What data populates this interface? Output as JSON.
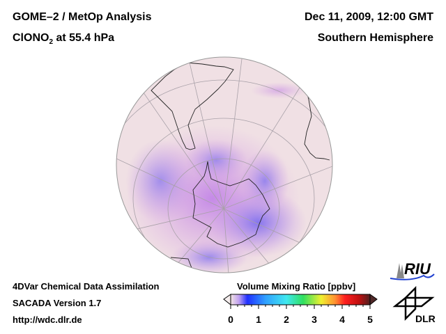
{
  "header": {
    "title_line1": "GOME–2 / MetOp Analysis",
    "species_prefix": "ClONO",
    "species_sub": "2",
    "species_suffix": " at 55.4 hPa",
    "date": "Dec 11, 2009, 12:00 GMT",
    "region": "Southern Hemisphere"
  },
  "footer": {
    "line1": "4DVar Chemical Data Assimilation",
    "line2": "SACADA Version 1.7",
    "line3": "http://wdc.dlr.de"
  },
  "colorbar": {
    "title": "Volume Mixing Ratio [ppbv]",
    "ticks": [
      "0",
      "1",
      "2",
      "3",
      "4",
      "5"
    ],
    "range": [
      0,
      5
    ],
    "colors": [
      "#f2e4e4",
      "#7a3cf0",
      "#1030ff",
      "#30a0ff",
      "#40e8f0",
      "#30e060",
      "#f0f030",
      "#ff9030",
      "#ff2020",
      "#c01010",
      "#502020"
    ]
  },
  "logos": {
    "riu": "RIU",
    "dlr": "DLR"
  }
}
